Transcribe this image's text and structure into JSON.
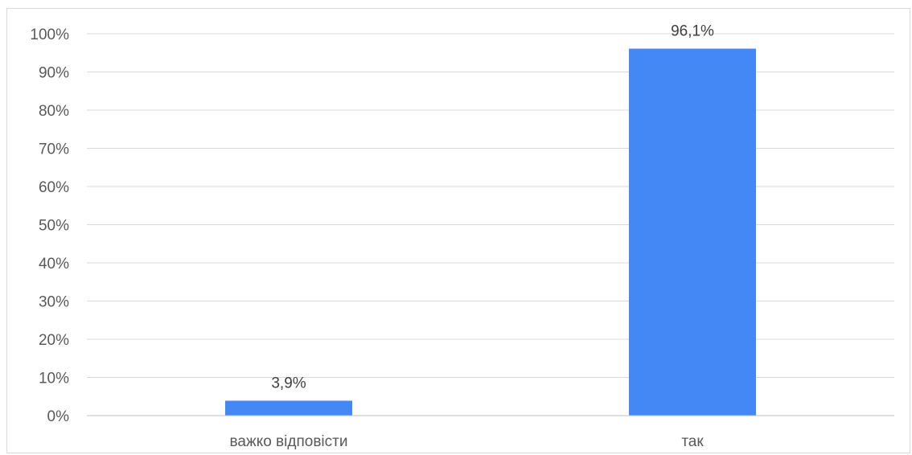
{
  "chart_data": {
    "type": "bar",
    "title": "",
    "xlabel": "",
    "ylabel": "",
    "categories": [
      "важко відповісти",
      "так"
    ],
    "values": [
      3.9,
      96.1
    ],
    "data_labels": [
      "3,9%",
      "96,1%"
    ],
    "ylim": [
      0,
      100
    ],
    "yticks": [
      0,
      10,
      20,
      30,
      40,
      50,
      60,
      70,
      80,
      90,
      100
    ],
    "ytick_labels": [
      "0%",
      "10%",
      "20%",
      "30%",
      "40%",
      "50%",
      "60%",
      "70%",
      "80%",
      "90%",
      "100%"
    ],
    "grid": true,
    "legend": "none",
    "bar_color": "#4388f5"
  }
}
